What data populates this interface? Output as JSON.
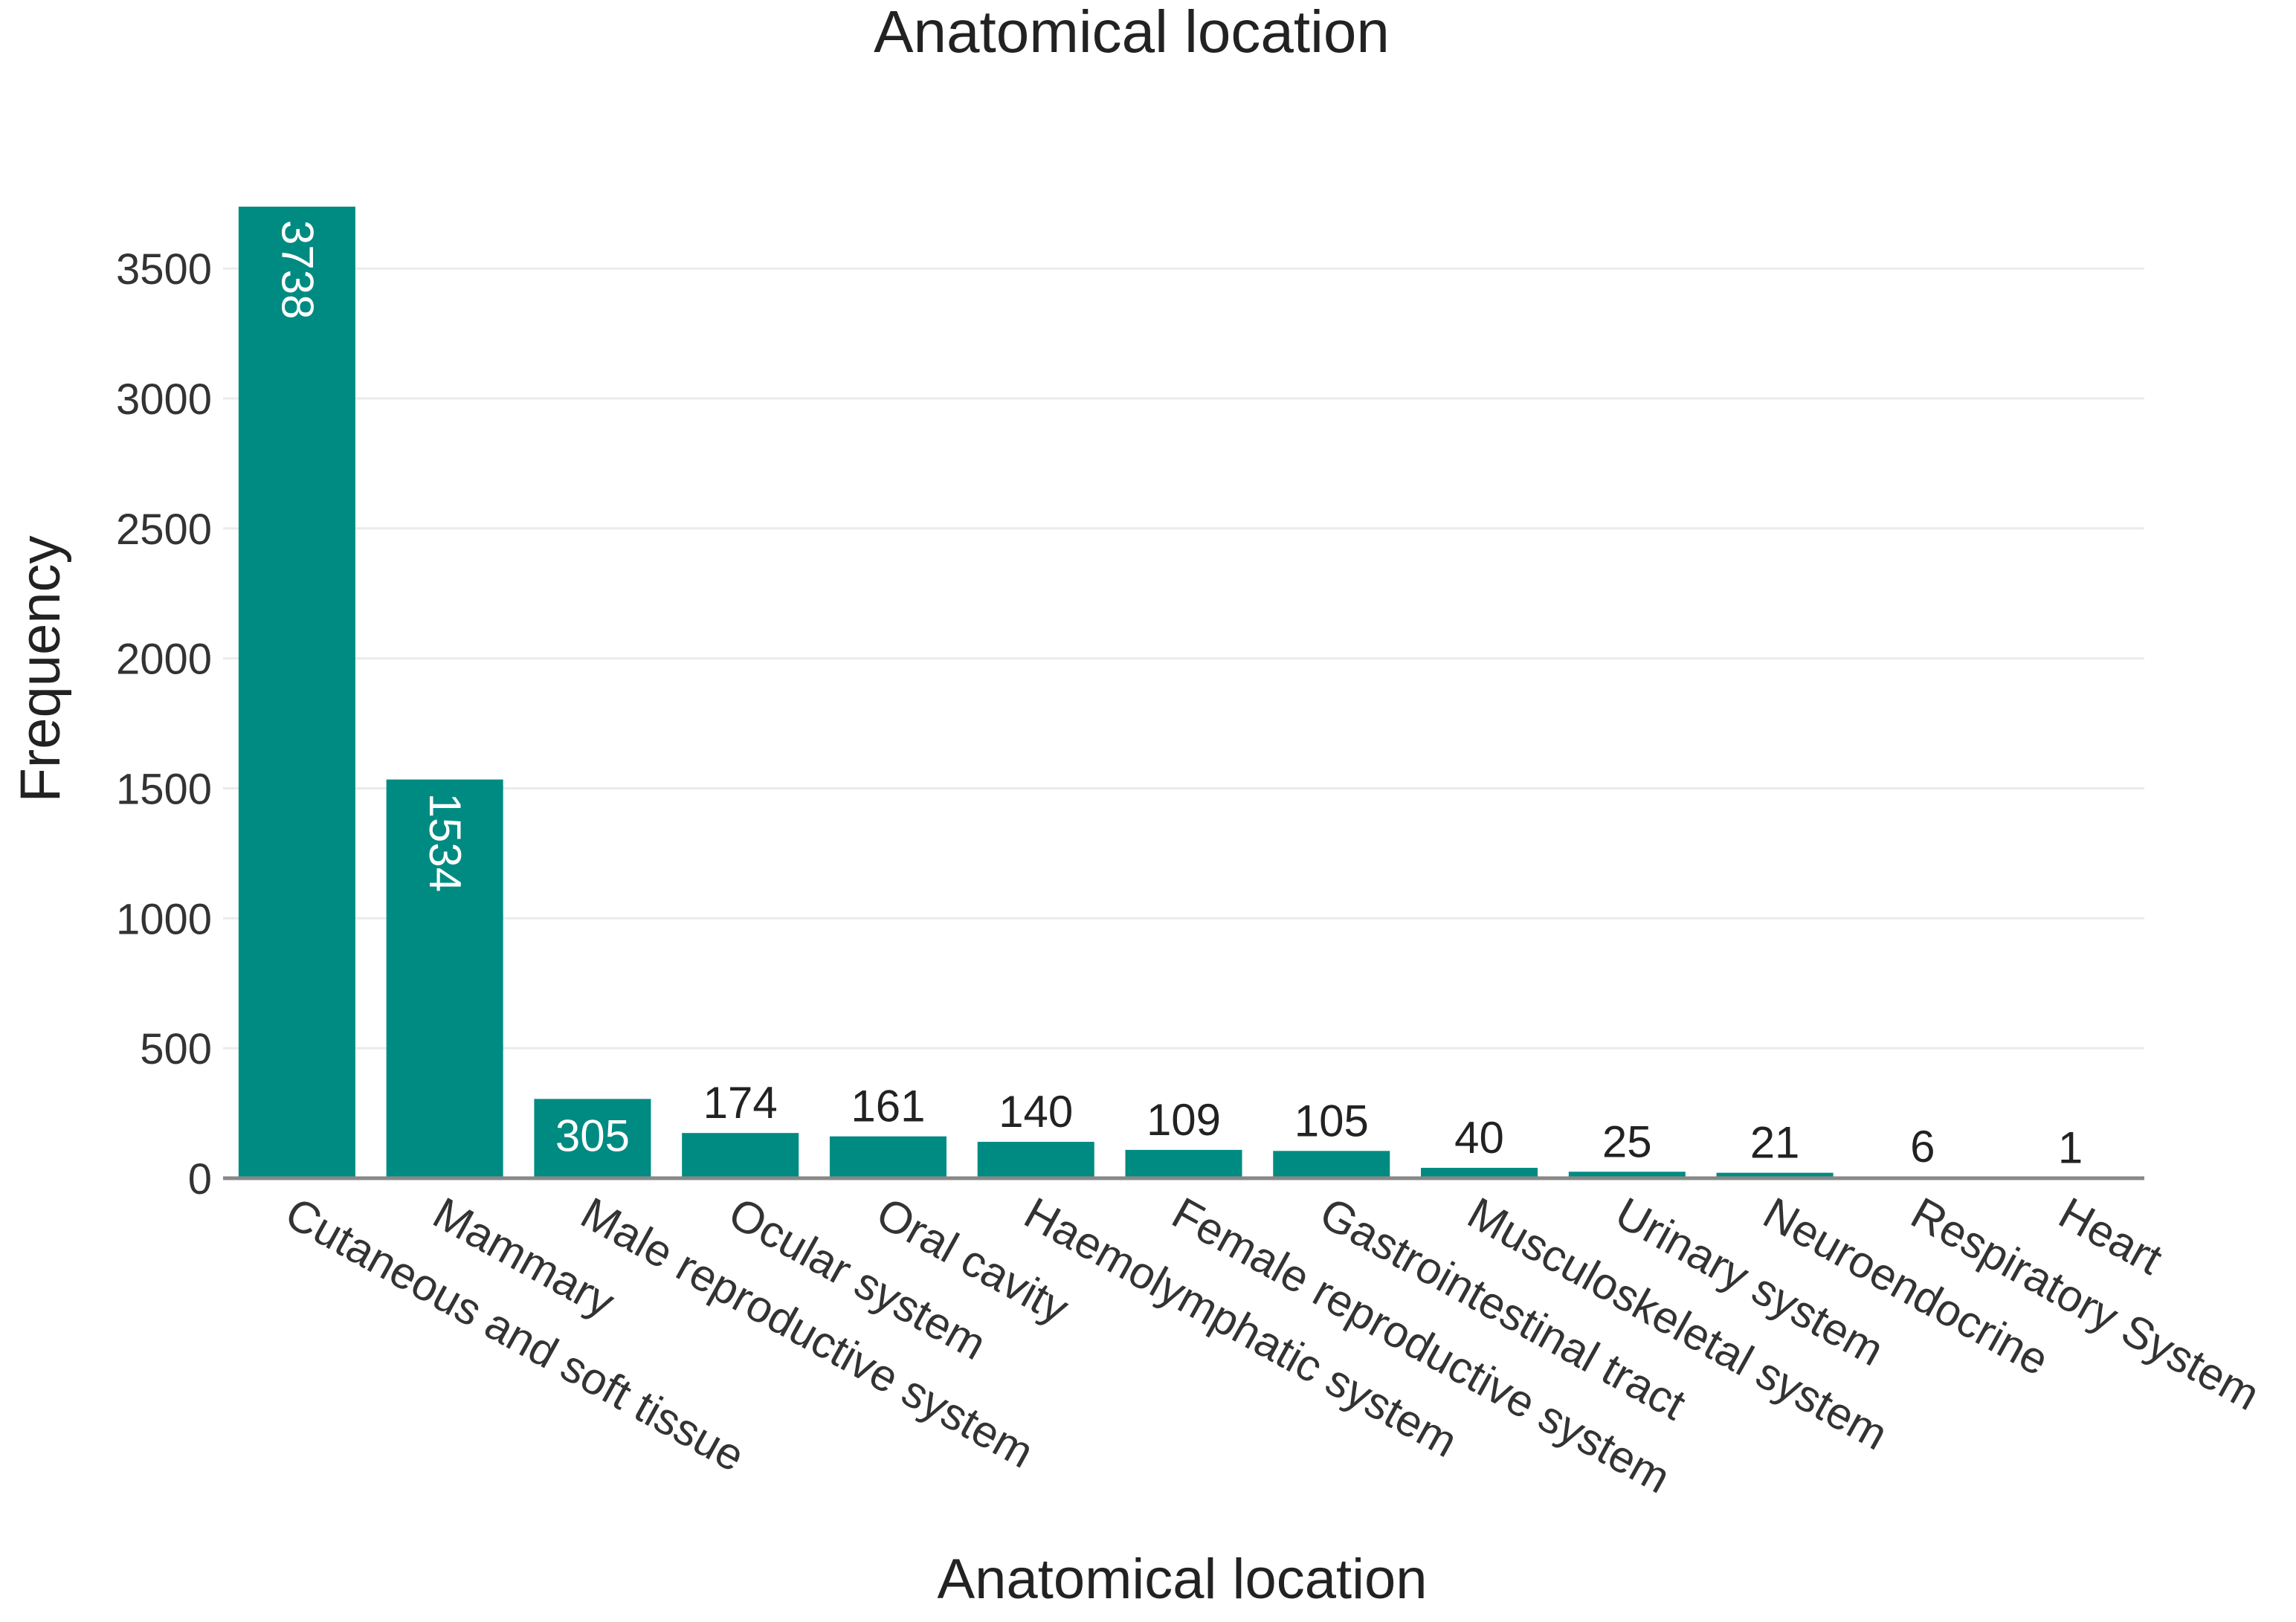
{
  "chart_data": {
    "type": "bar",
    "title": "Anatomical location",
    "xlabel": "Anatomical location",
    "ylabel": "Frequency",
    "categories": [
      "Cutaneous and soft tissue",
      "Mammary",
      "Male reproductive system",
      "Ocular system",
      "Oral cavity",
      "Haemolymphatic system",
      "Female reproductive system",
      "Gastrointestinal tract",
      "Musculoskeletal system",
      "Urinary system",
      "Neuroendocrine",
      "Respiratory System",
      "Heart"
    ],
    "values": [
      3738,
      1534,
      305,
      174,
      161,
      140,
      109,
      105,
      40,
      25,
      21,
      6,
      1
    ],
    "data_labels": [
      "3738",
      "1534",
      "305",
      "174",
      "161",
      "140",
      "109",
      "105",
      "40",
      "25",
      "21",
      "6",
      "1"
    ],
    "ylim": [
      0,
      3738
    ],
    "yticks": [
      0,
      500,
      1000,
      1500,
      2000,
      2500,
      3000,
      3500
    ],
    "ytick_labels": [
      "0",
      "500",
      "1000",
      "1500",
      "2000",
      "2500",
      "3000",
      "3500"
    ],
    "grid": true,
    "bar_color": "#008B82",
    "gridline_color": "#EBEBEB",
    "axis_color": "#888888"
  }
}
